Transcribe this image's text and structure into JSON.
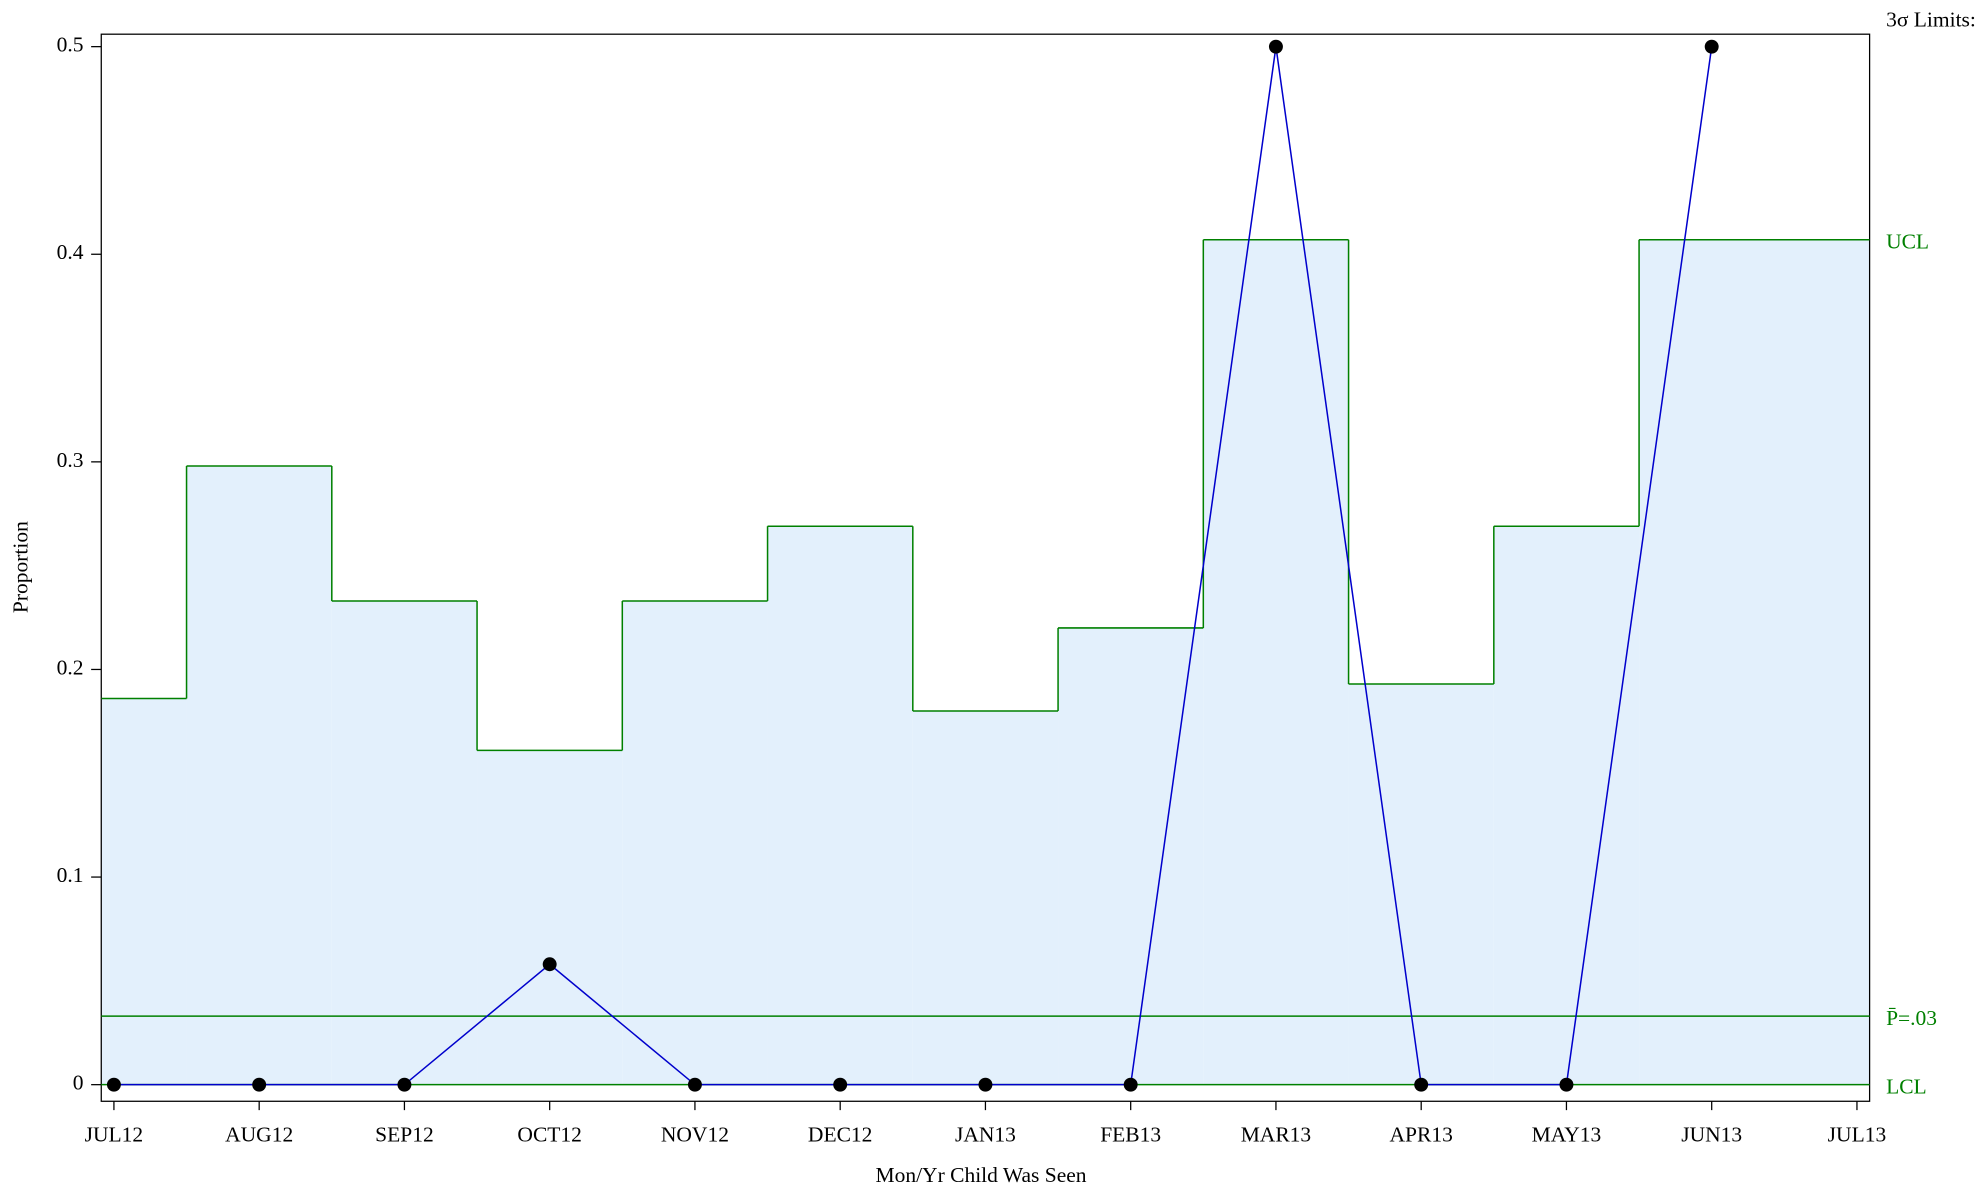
{
  "chart_data": {
    "type": "line",
    "x_label": "Mon/Yr Child Was Seen",
    "y_label": "Proportion",
    "categories": [
      "JUL12",
      "AUG12",
      "SEP12",
      "OCT12",
      "NOV12",
      "DEC12",
      "JAN13",
      "FEB13",
      "MAR13",
      "APR13",
      "MAY13",
      "JUN13",
      "JUL13"
    ],
    "values": [
      0,
      0,
      0,
      0.058,
      0,
      0,
      0,
      0,
      0.5,
      0,
      0,
      0.5,
      null
    ],
    "color": "#0000cc",
    "marker_color": "#000000",
    "ylim": [
      -0.008,
      0.506
    ],
    "yticks": [
      0,
      0.1,
      0.2,
      0.3,
      0.4,
      0.5
    ],
    "limits": {
      "label": "3σ Limits:",
      "color": "#008000",
      "fill": "#e3f0fc",
      "ucl": {
        "label": "UCL",
        "values": [
          0.186,
          0.298,
          0.233,
          0.161,
          0.233,
          0.269,
          0.18,
          0.22,
          0.407,
          0.193,
          0.269,
          0.407,
          null
        ]
      },
      "center": {
        "label": "P̄=.03",
        "value": 0.033
      },
      "lcl": {
        "label": "LCL",
        "value": 0
      }
    }
  }
}
